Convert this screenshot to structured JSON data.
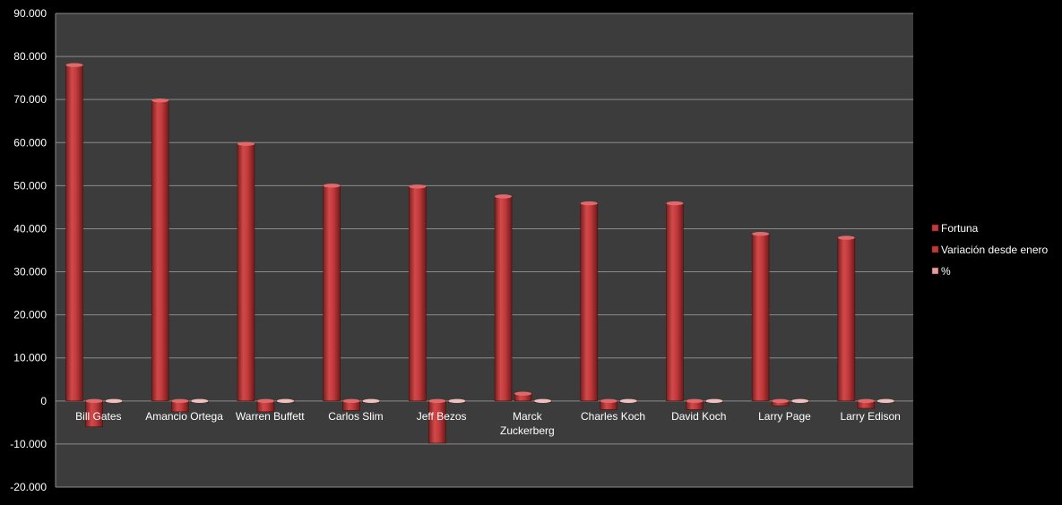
{
  "chart_data": {
    "type": "bar",
    "title": "",
    "xlabel": "",
    "ylabel": "",
    "ylim": [
      -20000,
      90000
    ],
    "ytick_step": 10000,
    "ytick_labels": [
      "-20.000",
      "-10.000",
      "0",
      "10.000",
      "20.000",
      "30.000",
      "40.000",
      "50.000",
      "60.000",
      "70.000",
      "80.000",
      "90.000"
    ],
    "grid": true,
    "legend_position": "right",
    "categories": [
      "Bill Gates",
      "Amancio Ortega",
      "Warren Buffett",
      "Carlos Slim",
      "Jeff Bezos",
      "Marck Zuckerberg",
      "Charles Koch",
      "David Koch",
      "Larry Page",
      "Larry Edison"
    ],
    "series": [
      {
        "name": "Fortuna",
        "values": [
          78000,
          69800,
          59700,
          50000,
          49800,
          47500,
          45900,
          45900,
          38800,
          37900
        ],
        "color": "#c0393b"
      },
      {
        "name": "Variación desde enero",
        "values": [
          -6000,
          -2500,
          -2500,
          -2200,
          -9800,
          1700,
          -2000,
          -2000,
          -1100,
          -1700
        ],
        "color": "#c0393b"
      },
      {
        "name": "%",
        "values": [
          -7,
          -3,
          -4,
          -4,
          -17,
          4,
          -4,
          -4,
          -3,
          -4
        ],
        "color": "#d98a8a"
      }
    ],
    "colors": {
      "background": "#000000",
      "plot_area": "#3c3c3c",
      "gridline": "#8a8a8a",
      "text": "#ffffff"
    }
  }
}
